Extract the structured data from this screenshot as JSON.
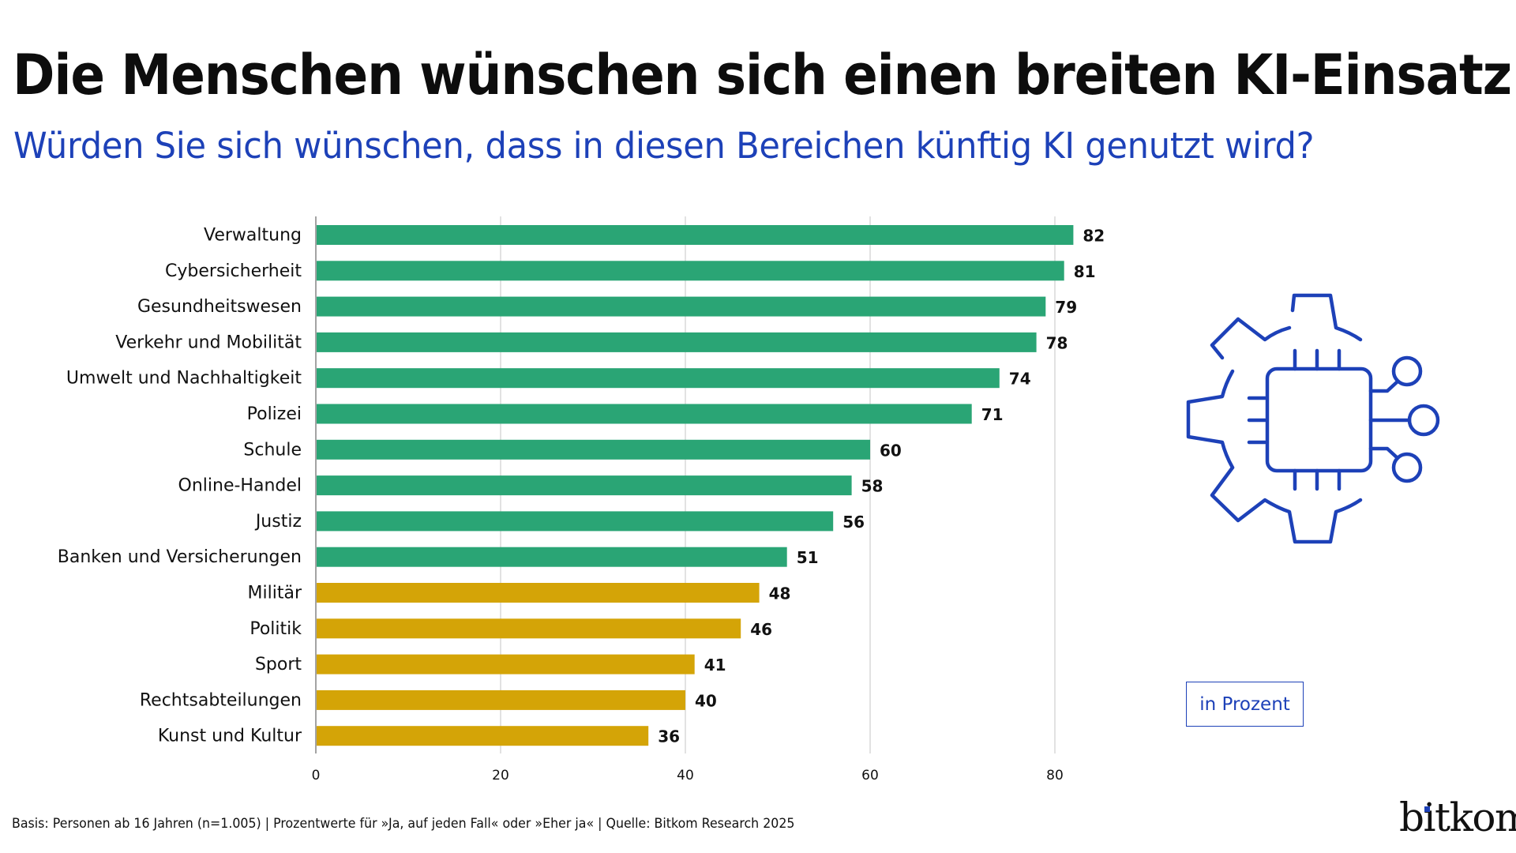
{
  "header": {
    "title": "Die Menschen wünschen sich einen breiten KI-Einsatz",
    "subtitle": "Würden Sie sich wünschen, dass in diesen Bereichen künftig KI genutzt wird?"
  },
  "colors": {
    "high": "#2aa575",
    "low": "#d4a407",
    "accent_blue": "#1d41b8",
    "grid": "#d9d9d9",
    "axis": "#666666",
    "text": "#111111"
  },
  "unit_label": "in Prozent",
  "icon": "ai-chip-gear-icon",
  "footer": {
    "source": "Basis: Personen ab 16 Jahren (n=1.005) | Prozentwerte für »Ja, auf jeden Fall« oder »Eher ja« | Quelle: Bitkom Research 2025"
  },
  "logo": {
    "text": "bitkom"
  },
  "chart_data": {
    "type": "bar",
    "orientation": "horizontal",
    "title": "Die Menschen wünschen sich einen breiten KI-Einsatz",
    "subtitle": "Würden Sie sich wünschen, dass in diesen Bereichen künftig KI genutzt wird?",
    "xlabel": "",
    "ylabel": "",
    "unit": "in Prozent",
    "xlim": [
      0,
      80
    ],
    "xticks": [
      0,
      20,
      40,
      60,
      80
    ],
    "grid": true,
    "categories": [
      "Verwaltung",
      "Cybersicherheit",
      "Gesundheitswesen",
      "Verkehr und Mobilität",
      "Umwelt und Nachhaltigkeit",
      "Polizei",
      "Schule",
      "Online-Handel",
      "Justiz",
      "Banken und Versicherungen",
      "Militär",
      "Politik",
      "Sport",
      "Rechtsabteilungen",
      "Kunst und Kultur"
    ],
    "values": [
      82,
      81,
      79,
      78,
      74,
      71,
      60,
      58,
      56,
      51,
      48,
      46,
      41,
      40,
      36
    ],
    "color_groups": [
      "high",
      "high",
      "high",
      "high",
      "high",
      "high",
      "high",
      "high",
      "high",
      "high",
      "low",
      "low",
      "low",
      "low",
      "low"
    ],
    "legend": "none"
  }
}
